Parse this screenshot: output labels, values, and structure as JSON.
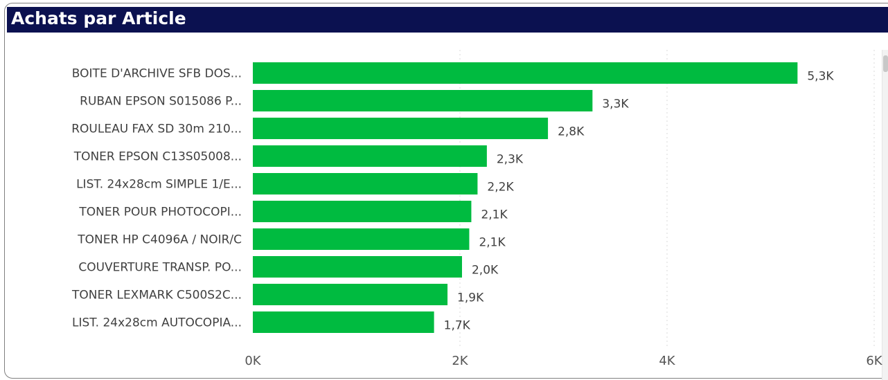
{
  "title": "Achats par Article",
  "chart_data": {
    "type": "bar",
    "orientation": "horizontal",
    "title": "Achats par Article",
    "xlabel": "",
    "ylabel": "",
    "xlim": [
      0,
      6000
    ],
    "grid": true,
    "bar_color": "#00bb40",
    "categories": [
      "BOITE D'ARCHIVE SFB DOS...",
      "RUBAN EPSON S015086 P...",
      "ROULEAU FAX SD 30m 210...",
      "TONER EPSON C13S05008...",
      "LIST. 24x28cm SIMPLE 1/E...",
      "TONER POUR PHOTOCOPI...",
      "TONER HP C4096A / NOIR/C",
      "COUVERTURE TRANSP. PO...",
      "TONER LEXMARK C500S2C...",
      "LIST. 24x28cm AUTOCOPIA..."
    ],
    "values": [
      5260,
      3280,
      2850,
      2260,
      2170,
      2110,
      2090,
      2020,
      1880,
      1750
    ],
    "value_labels": [
      "5,3K",
      "3,3K",
      "2,8K",
      "2,3K",
      "2,2K",
      "2,1K",
      "2,1K",
      "2,0K",
      "1,9K",
      "1,7K"
    ],
    "ticks": [
      0,
      2000,
      4000,
      6000
    ],
    "tick_labels": [
      "0K",
      "2K",
      "4K",
      "6K"
    ]
  }
}
